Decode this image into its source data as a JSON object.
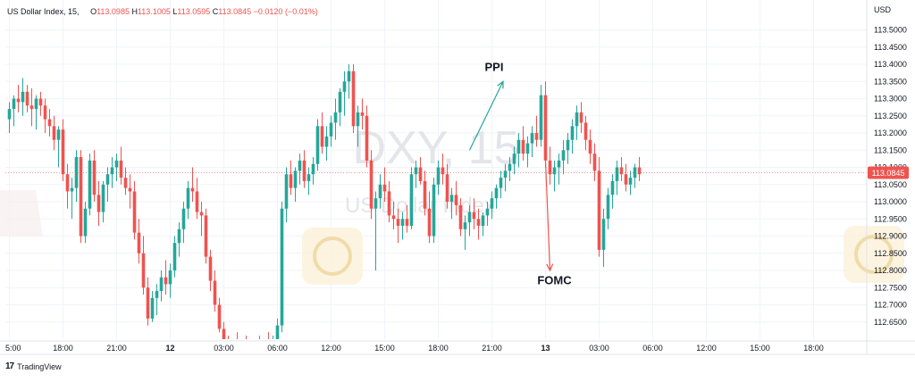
{
  "header": {
    "symbol": "US Dollar Index, 15,",
    "open_label": "O",
    "open": "113.0985",
    "high_label": "H",
    "high": "113.1005",
    "low_label": "L",
    "low": "113.0595",
    "close_label": "C",
    "close": "113.0845",
    "change": "−0.0120 (−0.01%)"
  },
  "brand": {
    "name": "TradingView",
    "logo_text": "17"
  },
  "watermark": {
    "symbol": "DXY, 15",
    "name": "US Dollar Index"
  },
  "colors": {
    "up": "#26a69a",
    "down": "#ef5350",
    "grid": "#f0f3fa",
    "price_line": "#ef5350"
  },
  "chart_data": {
    "type": "candlestick",
    "currency": "USD",
    "ylim": [
      112.6,
      113.53
    ],
    "y_ticks": [
      "113.5000",
      "113.4500",
      "113.4000",
      "113.3500",
      "113.3000",
      "113.2500",
      "113.2000",
      "113.1500",
      "113.1000",
      "113.0500",
      "113.0000",
      "112.9500",
      "112.9000",
      "112.8500",
      "112.8000",
      "112.7500",
      "112.7000",
      "112.6500"
    ],
    "x_ticks": [
      {
        "label": "5:00",
        "bar": 0
      },
      {
        "label": "18:00",
        "bar": 12
      },
      {
        "label": "21:00",
        "bar": 24
      },
      {
        "label": "12",
        "bar": 36,
        "bold": true
      },
      {
        "label": "03:00",
        "bar": 48
      },
      {
        "label": "06:00",
        "bar": 60
      },
      {
        "label": "12:00",
        "bar": 72
      },
      {
        "label": "15:00",
        "bar": 84
      },
      {
        "label": "18:00",
        "bar": 96
      },
      {
        "label": "21:00",
        "bar": 108
      },
      {
        "label": "13",
        "bar": 120,
        "bold": true
      },
      {
        "label": "03:00",
        "bar": 132
      },
      {
        "label": "06:00",
        "bar": 144
      },
      {
        "label": "12:00",
        "bar": 156
      },
      {
        "label": "15:00",
        "bar": 168
      },
      {
        "label": "18:00",
        "bar": 180
      }
    ],
    "last_price": "113.0845",
    "last_price_value": 113.0845,
    "candles": [
      [
        113.24,
        113.29,
        113.2,
        113.27
      ],
      [
        113.27,
        113.31,
        113.22,
        113.3
      ],
      [
        113.3,
        113.34,
        113.26,
        113.29
      ],
      [
        113.29,
        113.36,
        113.25,
        113.32
      ],
      [
        113.32,
        113.34,
        113.26,
        113.28
      ],
      [
        113.28,
        113.33,
        113.22,
        113.27
      ],
      [
        113.27,
        113.31,
        113.21,
        113.3
      ],
      [
        113.3,
        113.32,
        113.25,
        113.28
      ],
      [
        113.28,
        113.3,
        113.2,
        113.24
      ],
      [
        113.24,
        113.27,
        113.19,
        113.22
      ],
      [
        113.22,
        113.25,
        113.15,
        113.18
      ],
      [
        113.18,
        113.22,
        113.1,
        113.21
      ],
      [
        113.21,
        113.24,
        113.06,
        113.08
      ],
      [
        113.08,
        113.11,
        112.98,
        113.03
      ],
      [
        113.03,
        113.07,
        112.95,
        113.04
      ],
      [
        113.04,
        113.15,
        113.0,
        113.13
      ],
      [
        113.13,
        113.15,
        112.88,
        112.9
      ],
      [
        112.9,
        113.0,
        112.88,
        112.98
      ],
      [
        112.98,
        113.14,
        112.96,
        113.12
      ],
      [
        113.12,
        113.15,
        113.0,
        113.02
      ],
      [
        113.02,
        113.06,
        112.93,
        112.97
      ],
      [
        112.97,
        113.06,
        112.94,
        113.05
      ],
      [
        113.05,
        113.1,
        113.0,
        113.08
      ],
      [
        113.08,
        113.13,
        113.04,
        113.1
      ],
      [
        113.1,
        113.14,
        113.06,
        113.12
      ],
      [
        113.12,
        113.16,
        113.05,
        113.07
      ],
      [
        113.07,
        113.1,
        113.02,
        113.04
      ],
      [
        113.04,
        113.08,
        112.98,
        113.03
      ],
      [
        113.03,
        113.06,
        112.89,
        112.91
      ],
      [
        112.91,
        112.95,
        112.82,
        112.85
      ],
      [
        112.85,
        112.9,
        112.73,
        112.75
      ],
      [
        112.75,
        112.78,
        112.64,
        112.66
      ],
      [
        112.66,
        112.74,
        112.65,
        112.72
      ],
      [
        112.72,
        112.76,
        112.67,
        112.74
      ],
      [
        112.74,
        112.8,
        112.71,
        112.78
      ],
      [
        112.78,
        112.83,
        112.73,
        112.76
      ],
      [
        112.76,
        112.82,
        112.72,
        112.8
      ],
      [
        112.8,
        112.9,
        112.78,
        112.88
      ],
      [
        112.88,
        112.94,
        112.84,
        112.92
      ],
      [
        112.92,
        113.0,
        112.88,
        112.98
      ],
      [
        112.98,
        113.06,
        112.95,
        113.04
      ],
      [
        113.04,
        113.1,
        113.0,
        113.03
      ],
      [
        113.03,
        113.07,
        112.95,
        112.97
      ],
      [
        112.97,
        113.0,
        112.9,
        112.96
      ],
      [
        112.96,
        112.98,
        112.82,
        112.84
      ],
      [
        112.84,
        112.86,
        112.74,
        112.77
      ],
      [
        112.77,
        112.8,
        112.68,
        112.7
      ],
      [
        112.7,
        112.72,
        112.62,
        112.63
      ],
      [
        112.63,
        112.65,
        112.58,
        112.59
      ],
      [
        112.59,
        112.61,
        112.56,
        112.57
      ],
      [
        112.57,
        112.6,
        112.55,
        112.58
      ],
      [
        112.58,
        112.62,
        112.55,
        112.57
      ],
      [
        112.57,
        112.6,
        112.54,
        112.58
      ],
      [
        112.58,
        112.61,
        112.55,
        112.56
      ],
      [
        112.56,
        112.59,
        112.54,
        112.57
      ],
      [
        112.57,
        112.6,
        112.55,
        112.58
      ],
      [
        112.58,
        112.61,
        112.55,
        112.57
      ],
      [
        112.57,
        112.6,
        112.55,
        112.59
      ],
      [
        112.59,
        112.62,
        112.56,
        112.58
      ],
      [
        112.58,
        112.61,
        112.56,
        112.6
      ],
      [
        112.6,
        112.66,
        112.58,
        112.64
      ],
      [
        112.64,
        113.0,
        112.62,
        112.98
      ],
      [
        112.98,
        113.1,
        112.94,
        113.08
      ],
      [
        113.08,
        113.12,
        113.02,
        113.04
      ],
      [
        113.04,
        113.1,
        113.0,
        113.09
      ],
      [
        113.09,
        113.14,
        113.05,
        113.12
      ],
      [
        113.12,
        113.15,
        113.04,
        113.06
      ],
      [
        113.06,
        113.1,
        113.02,
        113.08
      ],
      [
        113.08,
        113.13,
        113.05,
        113.11
      ],
      [
        113.11,
        113.24,
        113.09,
        113.22
      ],
      [
        113.22,
        113.26,
        113.14,
        113.16
      ],
      [
        113.16,
        113.22,
        113.12,
        113.19
      ],
      [
        113.19,
        113.25,
        113.16,
        113.23
      ],
      [
        113.23,
        113.3,
        113.18,
        113.26
      ],
      [
        113.26,
        113.33,
        113.22,
        113.32
      ],
      [
        113.32,
        113.38,
        113.25,
        113.35
      ],
      [
        113.35,
        113.4,
        113.3,
        113.38
      ],
      [
        113.38,
        113.4,
        113.2,
        113.22
      ],
      [
        113.22,
        113.28,
        113.16,
        113.26
      ],
      [
        113.26,
        113.3,
        113.21,
        113.25
      ],
      [
        113.25,
        113.28,
        113.1,
        113.12
      ],
      [
        113.12,
        113.15,
        112.95,
        112.98
      ],
      [
        112.98,
        113.03,
        112.8,
        113.01
      ],
      [
        113.01,
        113.08,
        112.98,
        113.05
      ],
      [
        113.05,
        113.1,
        113.0,
        113.03
      ],
      [
        113.03,
        113.06,
        112.94,
        112.96
      ],
      [
        112.96,
        113.0,
        112.92,
        112.95
      ],
      [
        112.95,
        112.98,
        112.88,
        112.93
      ],
      [
        112.93,
        112.97,
        112.89,
        112.95
      ],
      [
        112.95,
        112.99,
        112.91,
        112.93
      ],
      [
        112.93,
        113.1,
        112.92,
        113.08
      ],
      [
        113.08,
        113.12,
        113.04,
        113.1
      ],
      [
        113.1,
        113.13,
        113.05,
        113.06
      ],
      [
        113.06,
        113.09,
        112.96,
        112.98
      ],
      [
        112.98,
        113.03,
        112.88,
        112.9
      ],
      [
        112.9,
        113.07,
        112.88,
        113.05
      ],
      [
        113.05,
        113.12,
        113.02,
        113.1
      ],
      [
        113.1,
        113.14,
        113.05,
        113.08
      ],
      [
        113.08,
        113.11,
        112.98,
        113.0
      ],
      [
        113.0,
        113.04,
        112.95,
        113.02
      ],
      [
        113.02,
        113.06,
        112.96,
        112.99
      ],
      [
        112.99,
        113.01,
        112.9,
        112.92
      ],
      [
        112.92,
        112.96,
        112.86,
        112.94
      ],
      [
        112.94,
        112.99,
        112.9,
        112.97
      ],
      [
        112.97,
        113.01,
        112.92,
        112.95
      ],
      [
        112.95,
        112.98,
        112.89,
        112.93
      ],
      [
        112.93,
        112.97,
        112.9,
        112.96
      ],
      [
        112.96,
        113.0,
        112.93,
        112.98
      ],
      [
        112.98,
        113.03,
        112.95,
        113.01
      ],
      [
        113.01,
        113.05,
        112.98,
        113.04
      ],
      [
        113.04,
        113.09,
        113.01,
        113.07
      ],
      [
        113.07,
        113.11,
        113.03,
        113.09
      ],
      [
        113.09,
        113.13,
        113.06,
        113.11
      ],
      [
        113.11,
        113.16,
        113.08,
        113.14
      ],
      [
        113.14,
        113.2,
        113.1,
        113.18
      ],
      [
        113.18,
        113.22,
        113.12,
        113.14
      ],
      [
        113.14,
        113.19,
        113.1,
        113.17
      ],
      [
        113.17,
        113.22,
        113.13,
        113.2
      ],
      [
        113.2,
        113.25,
        113.16,
        113.18
      ],
      [
        113.18,
        113.34,
        113.16,
        113.31
      ],
      [
        113.31,
        113.35,
        113.1,
        113.12
      ],
      [
        113.12,
        113.16,
        113.05,
        113.08
      ],
      [
        113.08,
        113.12,
        113.03,
        113.1
      ],
      [
        113.1,
        113.14,
        113.05,
        113.12
      ],
      [
        113.12,
        113.18,
        113.08,
        113.15
      ],
      [
        113.15,
        113.2,
        113.11,
        113.18
      ],
      [
        113.18,
        113.24,
        113.14,
        113.22
      ],
      [
        113.22,
        113.28,
        113.18,
        113.26
      ],
      [
        113.26,
        113.29,
        113.2,
        113.23
      ],
      [
        113.23,
        113.25,
        113.15,
        113.18
      ],
      [
        113.18,
        113.21,
        113.11,
        113.14
      ],
      [
        113.14,
        113.17,
        113.06,
        113.09
      ],
      [
        113.09,
        113.13,
        112.84,
        112.86
      ],
      [
        112.86,
        112.98,
        112.81,
        112.95
      ],
      [
        112.95,
        113.04,
        112.92,
        113.02
      ],
      [
        113.02,
        113.08,
        112.98,
        113.06
      ],
      [
        113.06,
        113.12,
        113.02,
        113.1
      ],
      [
        113.1,
        113.13,
        113.06,
        113.08
      ],
      [
        113.08,
        113.11,
        113.03,
        113.05
      ],
      [
        113.05,
        113.09,
        113.02,
        113.07
      ],
      [
        113.07,
        113.11,
        113.04,
        113.1
      ],
      [
        113.1,
        113.13,
        113.06,
        113.08
      ]
    ],
    "annotations": [
      {
        "text": "PPI",
        "x_bar": 108.5,
        "y": 113.38,
        "arrow_from": [
          103,
          113.15
        ],
        "arrow_to": [
          110.5,
          113.35
        ],
        "color": "#26a69a"
      },
      {
        "text": "FOMC",
        "x_bar": 122,
        "y": 112.76,
        "arrow_from": [
          120,
          113.12
        ],
        "arrow_to": [
          121,
          112.8
        ],
        "color": "#ef5350"
      }
    ]
  }
}
